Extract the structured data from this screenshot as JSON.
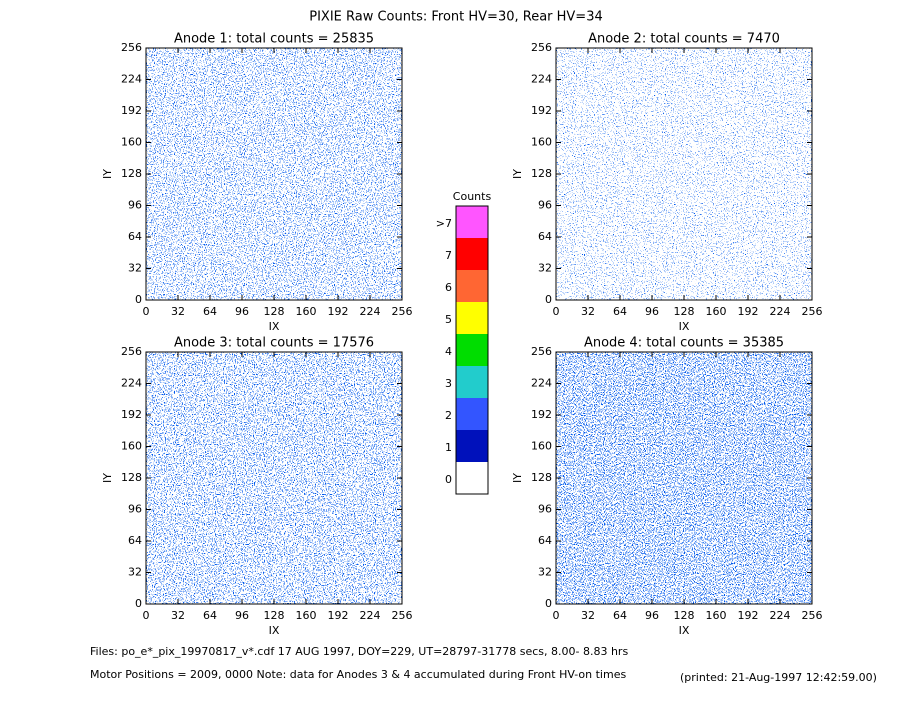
{
  "title": "PIXIE Raw Counts:  Front HV=30, Rear HV=34",
  "chart_data": [
    {
      "type": "heatmap",
      "title": "Anode 1: total counts = 25835",
      "xlabel": "IX",
      "ylabel": "IY",
      "xlim": [
        0,
        256
      ],
      "ylim": [
        0,
        256
      ],
      "xticks": [
        0,
        32,
        64,
        96,
        128,
        160,
        192,
        224,
        256
      ],
      "yticks": [
        0,
        32,
        64,
        96,
        128,
        160,
        192,
        224,
        256
      ]
    },
    {
      "type": "heatmap",
      "title": "Anode 2: total counts = 7470",
      "xlabel": "IX",
      "ylabel": "IY",
      "xlim": [
        0,
        256
      ],
      "ylim": [
        0,
        256
      ],
      "xticks": [
        0,
        32,
        64,
        96,
        128,
        160,
        192,
        224,
        256
      ],
      "yticks": [
        0,
        32,
        64,
        96,
        128,
        160,
        192,
        224,
        256
      ]
    },
    {
      "type": "heatmap",
      "title": "Anode 3: total counts = 17576",
      "xlabel": "IX",
      "ylabel": "IY",
      "xlim": [
        0,
        256
      ],
      "ylim": [
        0,
        256
      ],
      "xticks": [
        0,
        32,
        64,
        96,
        128,
        160,
        192,
        224,
        256
      ],
      "yticks": [
        0,
        32,
        64,
        96,
        128,
        160,
        192,
        224,
        256
      ]
    },
    {
      "type": "heatmap",
      "title": "Anode 4: total counts = 35385",
      "xlabel": "IX",
      "ylabel": "IY",
      "xlim": [
        0,
        256
      ],
      "ylim": [
        0,
        256
      ],
      "xticks": [
        0,
        32,
        64,
        96,
        128,
        160,
        192,
        224,
        256
      ],
      "yticks": [
        0,
        32,
        64,
        96,
        128,
        160,
        192,
        224,
        256
      ]
    }
  ],
  "colorbar": {
    "title": "Counts",
    "labels": [
      ">7",
      "7",
      "6",
      "5",
      "4",
      "3",
      "2",
      "1",
      "0"
    ],
    "colors": [
      "#ff55ff",
      "#ff0000",
      "#ff6633",
      "#ffff00",
      "#00dd00",
      "#22cccc",
      "#3355ff",
      "#0011bb",
      "#ffffff"
    ]
  },
  "footer": {
    "files": "Files: po_e*_pix_19970817_v*.cdf    17 AUG 1997, DOY=229, UT=28797-31778 secs,  8.00- 8.83 hrs",
    "motor": "Motor Positions = 2009, 0000    Note: data for Anodes 3 & 4 accumulated during Front HV-on times",
    "printed": "(printed: 21-Aug-1997 12:42:59.00)"
  }
}
